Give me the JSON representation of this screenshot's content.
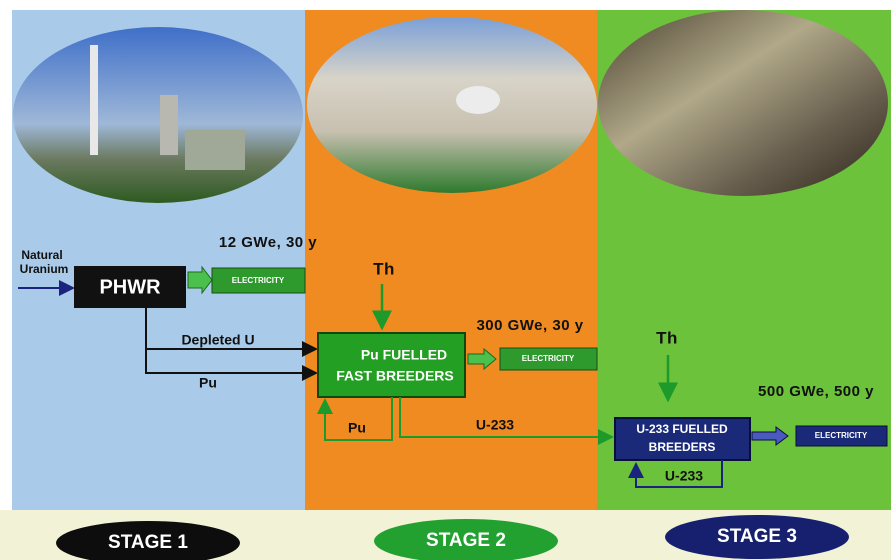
{
  "input_label": [
    "Natural",
    "Uranium"
  ],
  "nodes": {
    "phwr": "PHWR",
    "fast_breeders": [
      "Pu FUELLED",
      "FAST BREEDERS"
    ],
    "u233_breeders": [
      "U-233 FUELLED",
      "BREEDERS"
    ],
    "electricity": [
      "ELECTRICITY",
      "ELECTRICITY",
      "ELECTRICITY"
    ]
  },
  "capacities": [
    "12 GWe, 30 y",
    "300 GWe, 30 y",
    "500 GWe, 500 y"
  ],
  "flows": {
    "depleted_u": "Depleted U",
    "pu_to_stage2": "Pu",
    "th_stage2": "Th",
    "pu_loop": "Pu",
    "u233_to_stage3": "U-233",
    "th_stage3": "Th",
    "u233_loop": "U-233"
  },
  "stages": [
    "STAGE 1",
    "STAGE 2",
    "STAGE 3"
  ]
}
